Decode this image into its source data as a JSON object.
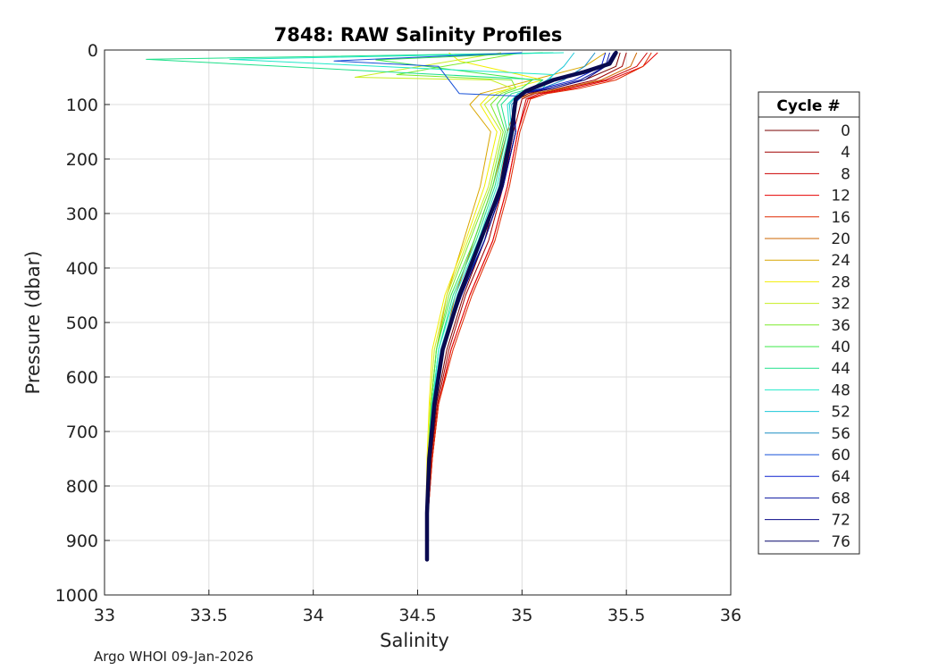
{
  "chart_data": {
    "type": "line",
    "title": "7848: RAW Salinity Profiles",
    "xlabel": "Salinity",
    "ylabel": "Pressure (dbar)",
    "xlim": [
      33,
      36
    ],
    "ylim": [
      0,
      1000
    ],
    "y_reversed": true,
    "grid": true,
    "xticks": [
      "33",
      "33.5",
      "34",
      "34.5",
      "35",
      "35.5",
      "36"
    ],
    "yticks": [
      "0",
      "100",
      "200",
      "300",
      "400",
      "500",
      "600",
      "700",
      "800",
      "900",
      "1000"
    ],
    "legend": {
      "title": "Cycle #",
      "placement": "right",
      "entries": [
        {
          "label": "0",
          "color": "#7a0000"
        },
        {
          "label": "4",
          "color": "#a00000"
        },
        {
          "label": "8",
          "color": "#cc0000"
        },
        {
          "label": "12",
          "color": "#e60000"
        },
        {
          "label": "16",
          "color": "#e02a00"
        },
        {
          "label": "20",
          "color": "#cc6600"
        },
        {
          "label": "24",
          "color": "#d9a600"
        },
        {
          "label": "28",
          "color": "#f2ee00"
        },
        {
          "label": "32",
          "color": "#c8ee20"
        },
        {
          "label": "36",
          "color": "#7cea2c"
        },
        {
          "label": "40",
          "color": "#3ce84a"
        },
        {
          "label": "44",
          "color": "#1ee08a"
        },
        {
          "label": "48",
          "color": "#1ee8c8"
        },
        {
          "label": "52",
          "color": "#1cc8d8"
        },
        {
          "label": "56",
          "color": "#1a8ec4"
        },
        {
          "label": "60",
          "color": "#1650d8"
        },
        {
          "label": "64",
          "color": "#0e22d0"
        },
        {
          "label": "68",
          "color": "#0a14a0"
        },
        {
          "label": "72",
          "color": "#0a0a88"
        },
        {
          "label": "76",
          "color": "#06066a"
        }
      ]
    },
    "series": [
      {
        "name": "0",
        "color": "#7a0000",
        "x": [
          35.47,
          35.45,
          35.3,
          35.15,
          35.03,
          34.98,
          34.94,
          34.89,
          34.82,
          34.72,
          34.64,
          34.59,
          34.565,
          34.55,
          34.545
        ],
        "y": [
          5,
          30,
          55,
          70,
          80,
          90,
          150,
          250,
          350,
          450,
          550,
          650,
          750,
          850,
          935
        ]
      },
      {
        "name": "4",
        "color": "#a00000",
        "x": [
          35.5,
          35.48,
          35.35,
          35.18,
          35.06,
          35.0,
          34.96,
          34.91,
          34.84,
          34.73,
          34.65,
          34.595,
          34.565,
          34.55,
          34.545
        ],
        "y": [
          5,
          30,
          55,
          70,
          80,
          90,
          150,
          250,
          350,
          450,
          550,
          650,
          750,
          850,
          935
        ]
      },
      {
        "name": "8",
        "color": "#cc0000",
        "x": [
          35.6,
          35.55,
          35.4,
          35.22,
          35.08,
          35.02,
          34.98,
          34.93,
          34.86,
          34.75,
          34.66,
          34.6,
          34.57,
          34.55,
          34.545
        ],
        "y": [
          5,
          30,
          55,
          70,
          80,
          90,
          150,
          250,
          350,
          450,
          550,
          650,
          750,
          850,
          935
        ]
      },
      {
        "name": "12",
        "color": "#e60000",
        "x": [
          35.65,
          35.58,
          35.42,
          35.25,
          35.1,
          35.03,
          34.98,
          34.93,
          34.86,
          34.75,
          34.66,
          34.6,
          34.57,
          34.55,
          34.545
        ],
        "y": [
          5,
          30,
          55,
          70,
          80,
          90,
          150,
          250,
          350,
          450,
          550,
          650,
          750,
          850,
          935
        ]
      },
      {
        "name": "16",
        "color": "#e02a00",
        "x": [
          35.62,
          35.58,
          35.45,
          35.28,
          35.12,
          35.04,
          34.99,
          34.94,
          34.87,
          34.76,
          34.67,
          34.6,
          34.57,
          34.55,
          34.545
        ],
        "y": [
          5,
          30,
          55,
          70,
          80,
          90,
          150,
          250,
          350,
          450,
          550,
          650,
          750,
          850,
          935
        ]
      },
      {
        "name": "20",
        "color": "#cc6600",
        "x": [
          35.55,
          35.52,
          35.38,
          35.2,
          35.05,
          34.98,
          34.93,
          34.86,
          34.77,
          34.68,
          34.62,
          34.58,
          34.56,
          34.55,
          34.545
        ],
        "y": [
          5,
          30,
          55,
          70,
          80,
          90,
          150,
          250,
          350,
          450,
          550,
          650,
          750,
          850,
          935
        ]
      },
      {
        "name": "24",
        "color": "#d9a600",
        "x": [
          35.4,
          35.3,
          35.05,
          34.9,
          34.8,
          34.75,
          34.85,
          34.8,
          34.72,
          34.64,
          34.59,
          34.565,
          34.55,
          34.545,
          34.545
        ],
        "y": [
          5,
          30,
          55,
          70,
          80,
          100,
          150,
          250,
          350,
          450,
          550,
          650,
          750,
          850,
          935
        ]
      },
      {
        "name": "28",
        "color": "#f2ee00",
        "x": [
          34.65,
          34.7,
          35.1,
          34.95,
          34.85,
          34.8,
          34.88,
          34.82,
          34.73,
          34.63,
          34.57,
          34.555,
          34.545,
          34.54,
          34.54
        ],
        "y": [
          5,
          20,
          55,
          70,
          80,
          100,
          150,
          250,
          350,
          450,
          550,
          650,
          750,
          850,
          935
        ]
      },
      {
        "name": "32",
        "color": "#c8ee20",
        "x": [
          34.9,
          34.2,
          34.85,
          34.95,
          34.88,
          34.82,
          34.9,
          34.84,
          34.74,
          34.64,
          34.58,
          34.56,
          34.55,
          34.545,
          34.545
        ],
        "y": [
          5,
          50,
          55,
          70,
          80,
          100,
          150,
          250,
          350,
          450,
          550,
          650,
          750,
          850,
          935
        ]
      },
      {
        "name": "36",
        "color": "#7cea2c",
        "x": [
          35.0,
          34.4,
          34.95,
          34.97,
          34.9,
          34.85,
          34.91,
          34.85,
          34.75,
          34.65,
          34.59,
          34.565,
          34.55,
          34.545,
          34.545
        ],
        "y": [
          5,
          45,
          55,
          70,
          80,
          100,
          150,
          250,
          350,
          450,
          550,
          650,
          750,
          850,
          935
        ]
      },
      {
        "name": "40",
        "color": "#3ce84a",
        "x": [
          35.1,
          34.3,
          35.05,
          35.0,
          34.92,
          34.88,
          34.92,
          34.86,
          34.77,
          34.66,
          34.59,
          34.565,
          34.55,
          34.545,
          34.545
        ],
        "y": [
          5,
          18,
          55,
          70,
          80,
          100,
          150,
          250,
          350,
          450,
          550,
          650,
          750,
          850,
          935
        ]
      },
      {
        "name": "44",
        "color": "#1ee08a",
        "x": [
          35.15,
          33.2,
          35.1,
          35.05,
          34.95,
          34.9,
          34.93,
          34.87,
          34.78,
          34.67,
          34.6,
          34.57,
          34.55,
          34.545,
          34.545
        ],
        "y": [
          5,
          17,
          55,
          70,
          80,
          100,
          150,
          250,
          350,
          450,
          550,
          650,
          750,
          850,
          935
        ]
      },
      {
        "name": "48",
        "color": "#1ee8c8",
        "x": [
          35.2,
          33.6,
          35.15,
          35.1,
          34.98,
          34.93,
          34.94,
          34.88,
          34.79,
          34.68,
          34.6,
          34.57,
          34.55,
          34.545,
          34.545
        ],
        "y": [
          5,
          17,
          45,
          70,
          80,
          100,
          150,
          250,
          350,
          450,
          550,
          650,
          750,
          850,
          935
        ]
      },
      {
        "name": "52",
        "color": "#1cc8d8",
        "x": [
          35.25,
          35.2,
          35.12,
          35.05,
          34.98,
          34.94,
          34.95,
          34.89,
          34.8,
          34.69,
          34.61,
          34.57,
          34.55,
          34.545,
          34.545
        ],
        "y": [
          5,
          30,
          55,
          70,
          80,
          100,
          150,
          250,
          350,
          450,
          550,
          650,
          750,
          850,
          935
        ]
      },
      {
        "name": "56",
        "color": "#1a8ec4",
        "x": [
          35.35,
          35.3,
          35.2,
          35.1,
          35.0,
          34.95,
          34.96,
          34.9,
          34.81,
          34.7,
          34.62,
          34.575,
          34.555,
          34.545,
          34.545
        ],
        "y": [
          5,
          30,
          55,
          70,
          80,
          100,
          150,
          250,
          350,
          450,
          550,
          650,
          750,
          850,
          935
        ]
      },
      {
        "name": "60",
        "color": "#1650d8",
        "x": [
          35.0,
          34.1,
          34.6,
          34.7,
          35.0,
          34.96,
          34.97,
          34.91,
          34.82,
          34.7,
          34.62,
          34.575,
          34.555,
          34.545,
          34.545
        ],
        "y": [
          5,
          20,
          30,
          80,
          85,
          100,
          150,
          250,
          350,
          450,
          550,
          650,
          750,
          850,
          935
        ]
      },
      {
        "name": "64",
        "color": "#0e22d0",
        "x": [
          35.4,
          35.38,
          35.25,
          35.1,
          35.0,
          34.96,
          34.97,
          34.91,
          34.82,
          34.71,
          34.62,
          34.575,
          34.555,
          34.545,
          34.545
        ],
        "y": [
          5,
          30,
          55,
          70,
          80,
          100,
          150,
          250,
          350,
          450,
          550,
          650,
          750,
          850,
          935
        ]
      },
      {
        "name": "68",
        "color": "#0a14a0",
        "x": [
          35.42,
          35.4,
          35.28,
          35.12,
          35.0,
          34.96,
          34.97,
          34.91,
          34.82,
          34.71,
          34.62,
          34.575,
          34.555,
          34.545,
          34.545
        ],
        "y": [
          5,
          30,
          55,
          70,
          80,
          100,
          150,
          250,
          350,
          450,
          550,
          650,
          750,
          850,
          935
        ]
      },
      {
        "name": "72",
        "color": "#0a0a88",
        "x": [
          35.44,
          35.4,
          35.3,
          35.15,
          35.0,
          34.96,
          34.97,
          34.91,
          34.82,
          34.71,
          34.62,
          34.575,
          34.555,
          34.545,
          34.545
        ],
        "y": [
          5,
          30,
          55,
          70,
          80,
          100,
          150,
          250,
          350,
          450,
          550,
          650,
          750,
          850,
          935
        ]
      },
      {
        "name": "76",
        "color": "#06066a",
        "x": [
          35.45,
          35.42,
          35.3,
          35.15,
          35.02,
          34.97,
          34.95,
          34.9,
          34.8,
          34.7,
          34.62,
          34.58,
          34.555,
          34.545,
          34.545
        ],
        "y": [
          5,
          25,
          40,
          55,
          75,
          90,
          150,
          250,
          350,
          450,
          550,
          650,
          750,
          850,
          935
        ]
      }
    ],
    "mean_profile": {
      "color": "#0a0a50",
      "x": [
        35.45,
        35.42,
        35.3,
        35.15,
        35.02,
        34.97,
        34.95,
        34.9,
        34.8,
        34.7,
        34.62,
        34.58,
        34.555,
        34.545,
        34.545
      ],
      "y": [
        5,
        25,
        40,
        55,
        75,
        90,
        150,
        250,
        350,
        450,
        550,
        650,
        750,
        850,
        935
      ]
    }
  },
  "footer": "Argo WHOI 09-Jan-2026"
}
